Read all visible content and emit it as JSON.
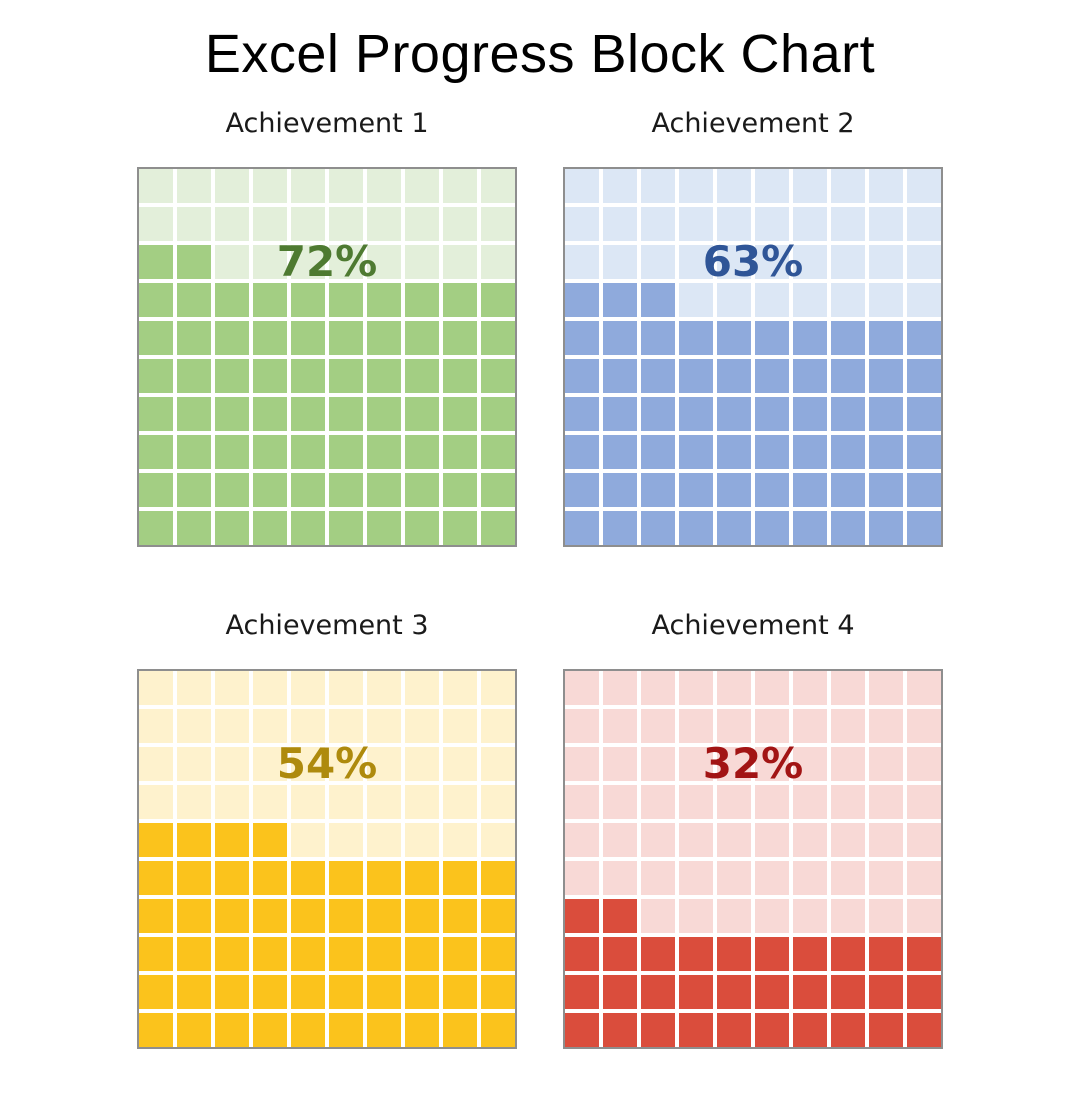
{
  "page": {
    "title": "Excel Progress Block Chart",
    "background": "#FFFFFF"
  },
  "chart_data": {
    "type": "heatmap",
    "subtype": "waffle-progress-block-chart",
    "title": "Excel Progress Block Chart",
    "grid": {
      "rows": 10,
      "cols": 10,
      "cell_unit_percent": 1,
      "fill_direction": "bottom-up, left-to-right"
    },
    "categories": [
      "Achievement 1",
      "Achievement 2",
      "Achievement 3",
      "Achievement 4"
    ],
    "values": [
      72,
      63,
      54,
      32
    ],
    "value_labels": [
      "72%",
      "63%",
      "54%",
      "32%"
    ],
    "legend": "none",
    "layout": "2x2 grid of waffle charts"
  },
  "charts": [
    {
      "label": "Achievement 1",
      "percent": 72,
      "value_label": "72%",
      "colors": {
        "fill": "#A3CE83",
        "empty": "#E3EFDA",
        "text": "#4E7A31"
      }
    },
    {
      "label": "Achievement 2",
      "percent": 63,
      "value_label": "63%",
      "colors": {
        "fill": "#8FAADC",
        "empty": "#DCE7F5",
        "text": "#2F5597"
      }
    },
    {
      "label": "Achievement 3",
      "percent": 54,
      "value_label": "54%",
      "colors": {
        "fill": "#FBC31C",
        "empty": "#FEF2CD",
        "text": "#AE8A0D"
      }
    },
    {
      "label": "Achievement 4",
      "percent": 32,
      "value_label": "32%",
      "colors": {
        "fill": "#DA4D3C",
        "empty": "#F8D9D6",
        "text": "#A21414"
      }
    }
  ],
  "style": {
    "grid_border_color": "#8E8E8E",
    "gridline_color": "#FFFFFF"
  }
}
